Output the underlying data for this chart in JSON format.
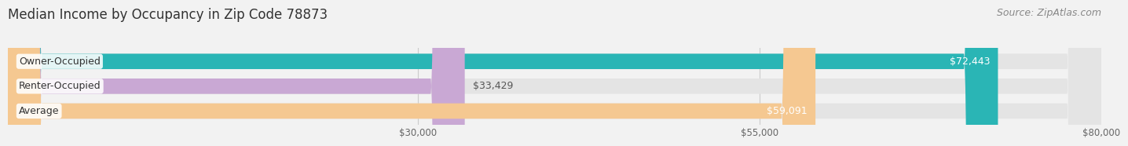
{
  "title": "Median Income by Occupancy in Zip Code 78873",
  "source": "Source: ZipAtlas.com",
  "categories": [
    "Owner-Occupied",
    "Renter-Occupied",
    "Average"
  ],
  "values": [
    72443,
    33429,
    59091
  ],
  "bar_colors": [
    "#2ab5b5",
    "#c9a8d4",
    "#f5c891"
  ],
  "bar_labels": [
    "$72,443",
    "$33,429",
    "$59,091"
  ],
  "label_color_inside": [
    "#ffffff",
    "#555555",
    "#555555"
  ],
  "xlim": [
    0,
    80000
  ],
  "xtick_values": [
    30000,
    55000,
    80000
  ],
  "xtick_labels": [
    "$30,000",
    "$55,000",
    "$80,000"
  ],
  "background_color": "#f2f2f2",
  "bar_background_color": "#e4e4e4",
  "title_fontsize": 12,
  "source_fontsize": 9,
  "bar_height": 0.62,
  "label_fontsize": 9,
  "category_fontsize": 9
}
